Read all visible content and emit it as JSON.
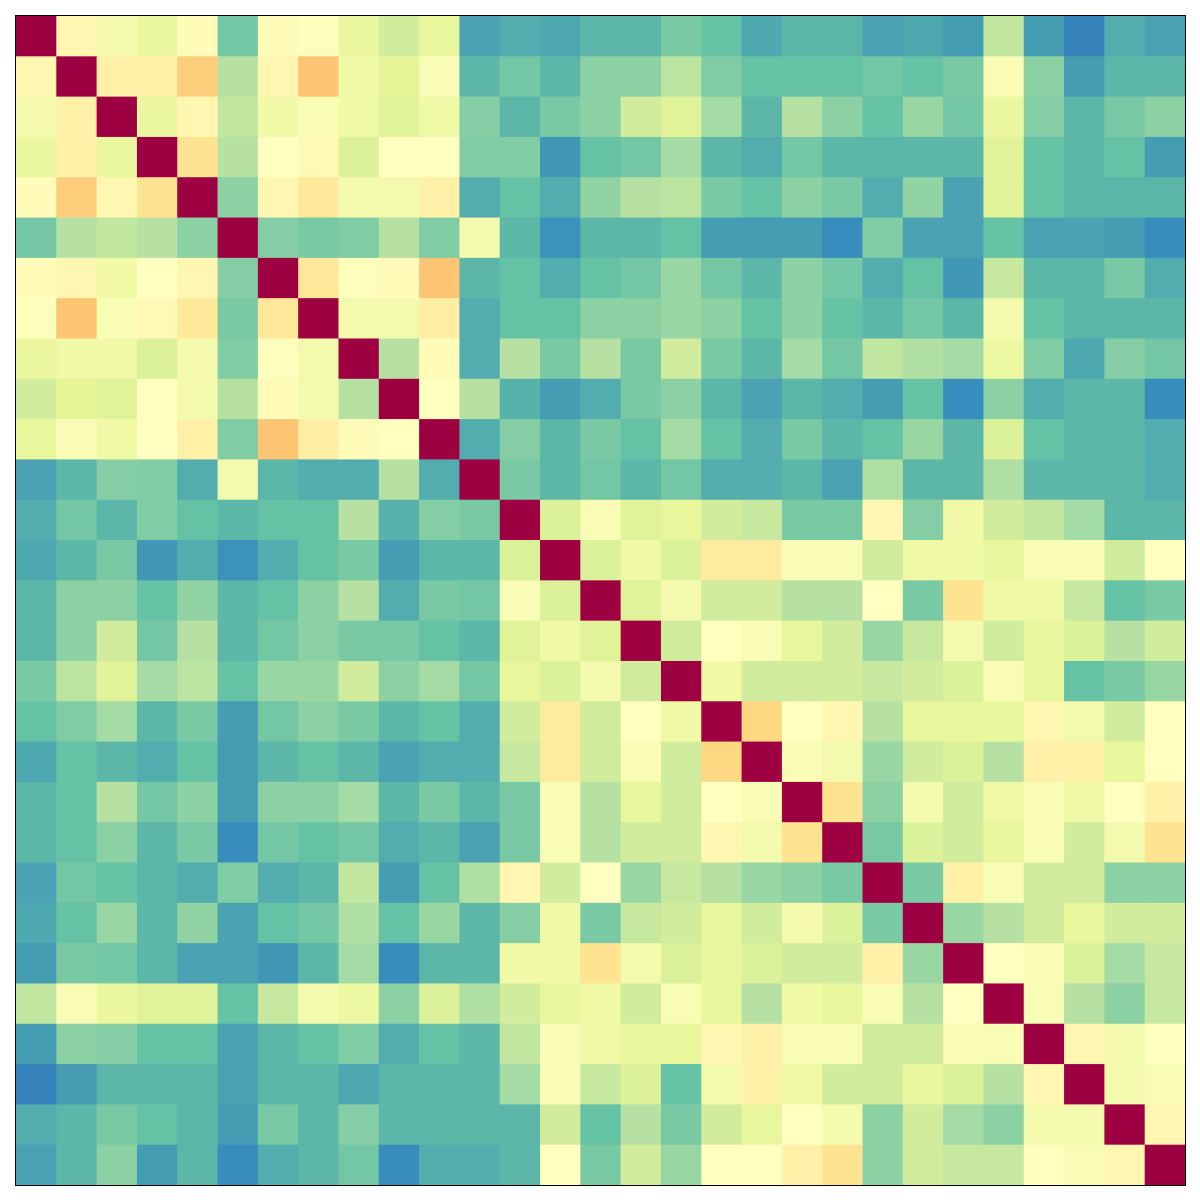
{
  "chart_data": {
    "type": "heatmap",
    "title": "",
    "xlabel": "",
    "ylabel": "",
    "x_tick_labels": [],
    "y_tick_labels": [],
    "grid": false,
    "legend": "none",
    "n_rows": 29,
    "n_cols": 29,
    "vlim": [
      -0.1,
      1.0
    ],
    "colormap": "Spectral_r",
    "diagonal_color": "#9e0142",
    "blocks": [
      {
        "start": 0,
        "end": 10,
        "within": 0.45,
        "label": ""
      },
      {
        "start": 11,
        "end": 28,
        "within": 0.35,
        "label": ""
      }
    ],
    "values": [
      [
        1.0,
        0.48,
        0.4,
        0.36,
        0.46,
        0.14,
        0.46,
        0.44,
        0.36,
        0.3,
        0.35,
        0.06,
        0.08,
        0.07,
        0.1,
        0.1,
        0.15,
        0.12,
        0.07,
        0.1,
        0.1,
        0.06,
        0.07,
        0.05,
        0.27,
        0.05,
        0.0,
        0.08,
        0.06
      ],
      [
        0.48,
        1.0,
        0.5,
        0.5,
        0.6,
        0.25,
        0.48,
        0.62,
        0.38,
        0.34,
        0.43,
        0.1,
        0.14,
        0.1,
        0.18,
        0.18,
        0.26,
        0.16,
        0.12,
        0.12,
        0.12,
        0.14,
        0.12,
        0.15,
        0.42,
        0.18,
        0.05,
        0.1,
        0.1
      ],
      [
        0.4,
        0.5,
        1.0,
        0.36,
        0.48,
        0.27,
        0.38,
        0.42,
        0.38,
        0.33,
        0.38,
        0.17,
        0.1,
        0.15,
        0.18,
        0.3,
        0.33,
        0.22,
        0.1,
        0.25,
        0.18,
        0.12,
        0.2,
        0.14,
        0.36,
        0.17,
        0.1,
        0.15,
        0.18
      ],
      [
        0.36,
        0.5,
        0.36,
        1.0,
        0.55,
        0.25,
        0.45,
        0.47,
        0.32,
        0.45,
        0.45,
        0.16,
        0.16,
        0.04,
        0.12,
        0.14,
        0.22,
        0.1,
        0.08,
        0.14,
        0.1,
        0.1,
        0.1,
        0.1,
        0.33,
        0.12,
        0.1,
        0.12,
        0.05
      ],
      [
        0.46,
        0.6,
        0.48,
        0.55,
        1.0,
        0.18,
        0.48,
        0.53,
        0.4,
        0.4,
        0.5,
        0.08,
        0.12,
        0.08,
        0.19,
        0.25,
        0.26,
        0.15,
        0.12,
        0.18,
        0.15,
        0.08,
        0.19,
        0.06,
        0.33,
        0.12,
        0.1,
        0.1,
        0.1
      ],
      [
        0.14,
        0.25,
        0.27,
        0.25,
        0.18,
        1.0,
        0.17,
        0.15,
        0.16,
        0.25,
        0.16,
        0.4,
        0.1,
        0.03,
        0.1,
        0.1,
        0.12,
        0.05,
        0.05,
        0.05,
        0.02,
        0.16,
        0.06,
        0.06,
        0.12,
        0.06,
        0.06,
        0.05,
        0.02
      ],
      [
        0.46,
        0.48,
        0.38,
        0.45,
        0.48,
        0.17,
        1.0,
        0.53,
        0.44,
        0.46,
        0.62,
        0.1,
        0.12,
        0.08,
        0.12,
        0.14,
        0.2,
        0.14,
        0.1,
        0.18,
        0.14,
        0.08,
        0.12,
        0.04,
        0.28,
        0.1,
        0.1,
        0.15,
        0.08
      ],
      [
        0.44,
        0.62,
        0.42,
        0.47,
        0.53,
        0.15,
        0.53,
        1.0,
        0.4,
        0.4,
        0.51,
        0.08,
        0.12,
        0.12,
        0.18,
        0.18,
        0.2,
        0.18,
        0.12,
        0.18,
        0.12,
        0.1,
        0.14,
        0.1,
        0.4,
        0.12,
        0.1,
        0.1,
        0.1
      ],
      [
        0.36,
        0.38,
        0.38,
        0.32,
        0.4,
        0.16,
        0.44,
        0.4,
        1.0,
        0.25,
        0.46,
        0.08,
        0.25,
        0.15,
        0.25,
        0.15,
        0.3,
        0.15,
        0.1,
        0.22,
        0.14,
        0.27,
        0.24,
        0.22,
        0.37,
        0.16,
        0.07,
        0.17,
        0.14
      ],
      [
        0.3,
        0.34,
        0.33,
        0.45,
        0.4,
        0.25,
        0.46,
        0.4,
        0.25,
        1.0,
        0.45,
        0.25,
        0.09,
        0.05,
        0.08,
        0.15,
        0.18,
        0.1,
        0.06,
        0.1,
        0.08,
        0.05,
        0.12,
        0.02,
        0.18,
        0.08,
        0.1,
        0.1,
        0.02
      ],
      [
        0.35,
        0.43,
        0.38,
        0.45,
        0.5,
        0.16,
        0.62,
        0.51,
        0.46,
        0.45,
        1.0,
        0.08,
        0.17,
        0.1,
        0.15,
        0.12,
        0.22,
        0.12,
        0.08,
        0.15,
        0.1,
        0.12,
        0.2,
        0.1,
        0.32,
        0.12,
        0.1,
        0.1,
        0.08
      ],
      [
        0.06,
        0.1,
        0.17,
        0.16,
        0.08,
        0.4,
        0.1,
        0.08,
        0.08,
        0.25,
        0.08,
        1.0,
        0.15,
        0.1,
        0.14,
        0.1,
        0.14,
        0.08,
        0.08,
        0.1,
        0.06,
        0.24,
        0.1,
        0.1,
        0.24,
        0.1,
        0.1,
        0.1,
        0.08
      ],
      [
        0.08,
        0.14,
        0.1,
        0.16,
        0.12,
        0.1,
        0.12,
        0.12,
        0.25,
        0.09,
        0.17,
        0.15,
        1.0,
        0.32,
        0.42,
        0.33,
        0.35,
        0.3,
        0.28,
        0.15,
        0.15,
        0.48,
        0.17,
        0.38,
        0.3,
        0.27,
        0.22,
        0.1,
        0.1
      ],
      [
        0.07,
        0.1,
        0.15,
        0.04,
        0.08,
        0.03,
        0.08,
        0.12,
        0.15,
        0.05,
        0.1,
        0.1,
        0.32,
        1.0,
        0.32,
        0.38,
        0.32,
        0.52,
        0.52,
        0.42,
        0.42,
        0.3,
        0.38,
        0.38,
        0.35,
        0.42,
        0.42,
        0.3,
        0.45
      ],
      [
        0.1,
        0.18,
        0.18,
        0.12,
        0.19,
        0.1,
        0.12,
        0.18,
        0.25,
        0.08,
        0.15,
        0.14,
        0.42,
        0.32,
        1.0,
        0.33,
        0.4,
        0.3,
        0.3,
        0.25,
        0.25,
        0.45,
        0.15,
        0.55,
        0.38,
        0.38,
        0.28,
        0.12,
        0.15
      ],
      [
        0.1,
        0.18,
        0.3,
        0.14,
        0.25,
        0.1,
        0.14,
        0.18,
        0.15,
        0.15,
        0.12,
        0.1,
        0.33,
        0.38,
        0.33,
        1.0,
        0.3,
        0.45,
        0.42,
        0.35,
        0.3,
        0.2,
        0.28,
        0.4,
        0.3,
        0.35,
        0.32,
        0.25,
        0.3
      ],
      [
        0.15,
        0.26,
        0.33,
        0.22,
        0.26,
        0.12,
        0.2,
        0.2,
        0.3,
        0.18,
        0.22,
        0.14,
        0.35,
        0.32,
        0.4,
        0.3,
        1.0,
        0.38,
        0.3,
        0.3,
        0.3,
        0.28,
        0.3,
        0.32,
        0.42,
        0.35,
        0.12,
        0.15,
        0.2
      ],
      [
        0.12,
        0.16,
        0.22,
        0.1,
        0.15,
        0.05,
        0.14,
        0.18,
        0.15,
        0.1,
        0.12,
        0.08,
        0.3,
        0.52,
        0.3,
        0.45,
        0.38,
        1.0,
        0.58,
        0.45,
        0.48,
        0.25,
        0.35,
        0.35,
        0.35,
        0.48,
        0.4,
        0.3,
        0.45
      ],
      [
        0.07,
        0.12,
        0.1,
        0.08,
        0.12,
        0.05,
        0.1,
        0.12,
        0.1,
        0.06,
        0.08,
        0.08,
        0.28,
        0.52,
        0.3,
        0.42,
        0.3,
        0.58,
        1.0,
        0.42,
        0.4,
        0.2,
        0.3,
        0.32,
        0.25,
        0.5,
        0.5,
        0.35,
        0.45
      ],
      [
        0.1,
        0.12,
        0.25,
        0.14,
        0.18,
        0.05,
        0.18,
        0.18,
        0.22,
        0.1,
        0.15,
        0.1,
        0.15,
        0.42,
        0.25,
        0.35,
        0.3,
        0.45,
        0.42,
        1.0,
        0.55,
        0.18,
        0.4,
        0.3,
        0.38,
        0.42,
        0.38,
        0.45,
        0.5
      ],
      [
        0.1,
        0.12,
        0.18,
        0.1,
        0.15,
        0.02,
        0.14,
        0.12,
        0.14,
        0.08,
        0.1,
        0.06,
        0.15,
        0.42,
        0.25,
        0.3,
        0.3,
        0.48,
        0.4,
        0.55,
        1.0,
        0.15,
        0.32,
        0.3,
        0.35,
        0.42,
        0.3,
        0.4,
        0.55
      ],
      [
        0.06,
        0.14,
        0.12,
        0.1,
        0.08,
        0.16,
        0.08,
        0.1,
        0.27,
        0.05,
        0.12,
        0.24,
        0.48,
        0.3,
        0.45,
        0.2,
        0.28,
        0.25,
        0.2,
        0.18,
        0.15,
        1.0,
        0.15,
        0.5,
        0.42,
        0.3,
        0.3,
        0.18,
        0.18
      ],
      [
        0.07,
        0.12,
        0.2,
        0.1,
        0.19,
        0.06,
        0.12,
        0.14,
        0.24,
        0.12,
        0.2,
        0.1,
        0.17,
        0.38,
        0.15,
        0.28,
        0.3,
        0.35,
        0.3,
        0.4,
        0.32,
        0.15,
        1.0,
        0.2,
        0.25,
        0.3,
        0.35,
        0.3,
        0.3
      ],
      [
        0.05,
        0.15,
        0.14,
        0.1,
        0.06,
        0.06,
        0.04,
        0.1,
        0.22,
        0.02,
        0.1,
        0.1,
        0.38,
        0.38,
        0.55,
        0.4,
        0.32,
        0.35,
        0.32,
        0.3,
        0.3,
        0.5,
        0.2,
        1.0,
        0.45,
        0.42,
        0.32,
        0.22,
        0.28
      ],
      [
        0.27,
        0.42,
        0.36,
        0.33,
        0.33,
        0.12,
        0.28,
        0.4,
        0.37,
        0.18,
        0.32,
        0.24,
        0.3,
        0.35,
        0.38,
        0.3,
        0.42,
        0.35,
        0.25,
        0.38,
        0.35,
        0.42,
        0.25,
        0.45,
        1.0,
        0.42,
        0.25,
        0.18,
        0.28
      ],
      [
        0.05,
        0.18,
        0.17,
        0.12,
        0.12,
        0.06,
        0.1,
        0.12,
        0.16,
        0.08,
        0.12,
        0.1,
        0.27,
        0.42,
        0.38,
        0.35,
        0.35,
        0.48,
        0.5,
        0.42,
        0.42,
        0.3,
        0.3,
        0.42,
        0.42,
        1.0,
        0.48,
        0.4,
        0.45
      ],
      [
        0.0,
        0.05,
        0.1,
        0.1,
        0.1,
        0.06,
        0.1,
        0.1,
        0.07,
        0.1,
        0.1,
        0.1,
        0.22,
        0.42,
        0.28,
        0.32,
        0.12,
        0.4,
        0.5,
        0.38,
        0.3,
        0.3,
        0.35,
        0.32,
        0.25,
        0.48,
        1.0,
        0.4,
        0.42
      ],
      [
        0.08,
        0.1,
        0.15,
        0.12,
        0.1,
        0.05,
        0.15,
        0.1,
        0.17,
        0.1,
        0.1,
        0.1,
        0.1,
        0.3,
        0.12,
        0.25,
        0.15,
        0.3,
        0.35,
        0.45,
        0.4,
        0.18,
        0.3,
        0.22,
        0.18,
        0.4,
        0.4,
        1.0,
        0.48
      ],
      [
        0.06,
        0.1,
        0.18,
        0.05,
        0.1,
        0.02,
        0.08,
        0.1,
        0.14,
        0.02,
        0.08,
        0.08,
        0.1,
        0.45,
        0.15,
        0.3,
        0.2,
        0.45,
        0.45,
        0.5,
        0.55,
        0.18,
        0.3,
        0.28,
        0.28,
        0.45,
        0.42,
        0.48,
        1.0
      ]
    ]
  }
}
